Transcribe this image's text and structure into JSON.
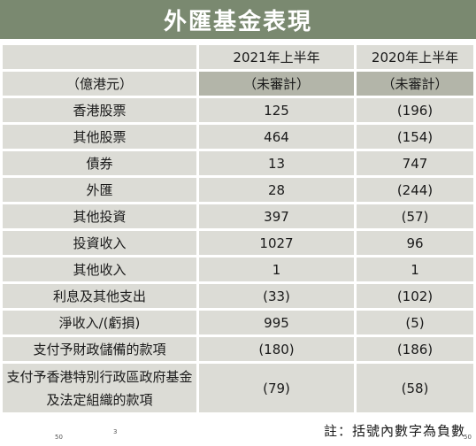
{
  "title": "外匯基金表現",
  "columns": {
    "label_header": "",
    "col1_header": "2021年上半年",
    "col2_header": "2020年上半年"
  },
  "subheader": {
    "unit": "（億港元）",
    "col1": "（未審計）",
    "col2": "（未審計）"
  },
  "rows": [
    {
      "label": "香港股票",
      "v2021": "125",
      "v2020": "(196)"
    },
    {
      "label": "其他股票",
      "v2021": "464",
      "v2020": "(154)"
    },
    {
      "label": "債券",
      "v2021": "13",
      "v2020": "747"
    },
    {
      "label": "外匯",
      "v2021": "28",
      "v2020": "(244)"
    },
    {
      "label": "其他投資",
      "v2021": "397",
      "v2020": "(57)"
    },
    {
      "label": "投資收入",
      "v2021": "1027",
      "v2020": "96"
    },
    {
      "label": "其他收入",
      "v2021": "1",
      "v2020": "1"
    },
    {
      "label": "利息及其他支出",
      "v2021": "(33)",
      "v2020": "(102)"
    },
    {
      "label": "淨收入/(虧損)",
      "v2021": "995",
      "v2020": "(5)"
    },
    {
      "label": "支付予財政儲備的款項",
      "v2021": "(180)",
      "v2020": "(186)"
    },
    {
      "label": "支付予香港特別行政區政府基金及法定組織的款項",
      "v2021": "(79)",
      "v2020": "(58)"
    }
  ],
  "footnote": "註：括號內數字為負數",
  "scan_marks": [
    "50",
    "3",
    "50"
  ]
}
